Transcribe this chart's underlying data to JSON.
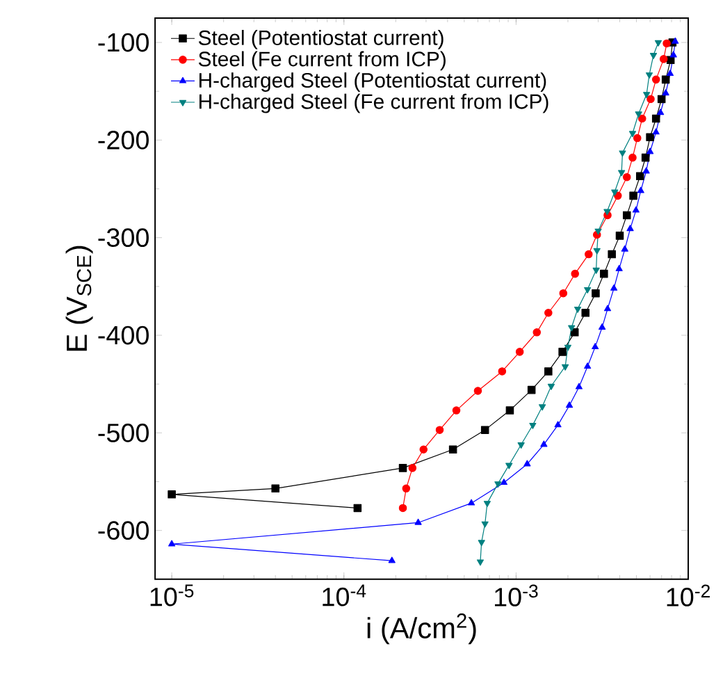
{
  "chart_data": {
    "type": "line",
    "xlabel": "i (A/cm$^{2}$)",
    "ylabel": "E (V$_{SCE}$)",
    "log": "x",
    "xlim": [
      8e-06,
      0.01
    ],
    "ylim": [
      -650,
      -75
    ],
    "xticks": [
      {
        "value": 1e-05,
        "label": "10$^{-5}$"
      },
      {
        "value": 0.0001,
        "label": "10$^{-4}$"
      },
      {
        "value": 0.001,
        "label": "10$^{-3}$"
      },
      {
        "value": 0.01,
        "label": "10$^{-2}$"
      }
    ],
    "yticks": [
      -600,
      -500,
      -400,
      -300,
      -200,
      -100
    ],
    "legend": "top left",
    "grid": false,
    "line_style": "solid",
    "series": [
      {
        "name": "Steel (Potentiostat current)",
        "color": "#000000",
        "marker": "square",
        "x": [
          0.00012,
          1e-05,
          4e-05,
          0.00022,
          0.00043,
          0.00066,
          0.00092,
          0.00123,
          0.00154,
          0.00186,
          0.00219,
          0.00253,
          0.0029,
          0.00324,
          0.0036,
          0.004,
          0.0044,
          0.0048,
          0.00525,
          0.00565,
          0.006,
          0.0065,
          0.007,
          0.0074,
          0.0079,
          0.0081
        ],
        "values": [
          -577,
          -563,
          -557,
          -536,
          -517,
          -497,
          -477,
          -456,
          -437,
          -417,
          -397,
          -377,
          -357,
          -337,
          -317,
          -298,
          -277,
          -257,
          -237,
          -218,
          -197,
          -178,
          -158,
          -138,
          -118,
          -100
        ]
      },
      {
        "name": "Steel (Fe current from ICP)",
        "color": "#ff0000",
        "marker": "circle",
        "x": [
          0.00022,
          0.00023,
          0.00025,
          0.00029,
          0.00036,
          0.00045,
          0.0006,
          0.00083,
          0.00105,
          0.00132,
          0.00154,
          0.00188,
          0.0022,
          0.00264,
          0.00295,
          0.0034,
          0.0039,
          0.0044,
          0.00475,
          0.00506,
          0.0054,
          0.00605,
          0.0065,
          0.0072,
          0.0075
        ],
        "values": [
          -577,
          -557,
          -536,
          -517,
          -497,
          -477,
          -457,
          -437,
          -417,
          -397,
          -377,
          -357,
          -337,
          -317,
          -297,
          -277,
          -257,
          -238,
          -218,
          -198,
          -178,
          -158,
          -138,
          -117,
          -101
        ]
      },
      {
        "name": "H-charged Steel (Potentiostat current)",
        "color": "#0000ff",
        "marker": "triangle",
        "x": [
          0.00019,
          1e-05,
          0.00027,
          0.00055,
          0.00085,
          0.00116,
          0.00145,
          0.00175,
          0.00204,
          0.00232,
          0.0026,
          0.00288,
          0.00316,
          0.0034,
          0.0037,
          0.00397,
          0.00428,
          0.0046,
          0.00497,
          0.0053,
          0.0057,
          0.006,
          0.0065,
          0.0069,
          0.0074,
          0.00785,
          0.0082,
          0.0084
        ],
        "values": [
          -631,
          -614,
          -592,
          -572,
          -551,
          -532,
          -512,
          -492,
          -472,
          -453,
          -432,
          -412,
          -392,
          -373,
          -352,
          -332,
          -312,
          -291,
          -272,
          -252,
          -232,
          -212,
          -192,
          -172,
          -152,
          -132,
          -113,
          -99
        ]
      },
      {
        "name": "H-charged Steel (Fe current from ICP)",
        "color": "#008080",
        "marker": "triangle-down",
        "x": [
          0.00062,
          0.00063,
          0.00066,
          0.00068,
          0.000785,
          0.00091,
          0.00107,
          0.00125,
          0.00142,
          0.0016,
          0.00193,
          0.002,
          0.0021,
          0.00228,
          0.0026,
          0.00292,
          0.00295,
          0.003,
          0.00338,
          0.00374,
          0.0041,
          0.00415,
          0.00475,
          0.00515,
          0.00573,
          0.00594,
          0.00628,
          0.0067
        ],
        "values": [
          -632,
          -612,
          -593,
          -572,
          -552,
          -533,
          -512,
          -492,
          -473,
          -452,
          -432,
          -412,
          -392,
          -373,
          -353,
          -333,
          -313,
          -293,
          -273,
          -253,
          -233,
          -213,
          -193,
          -173,
          -153,
          -133,
          -113,
          -100
        ]
      }
    ]
  }
}
